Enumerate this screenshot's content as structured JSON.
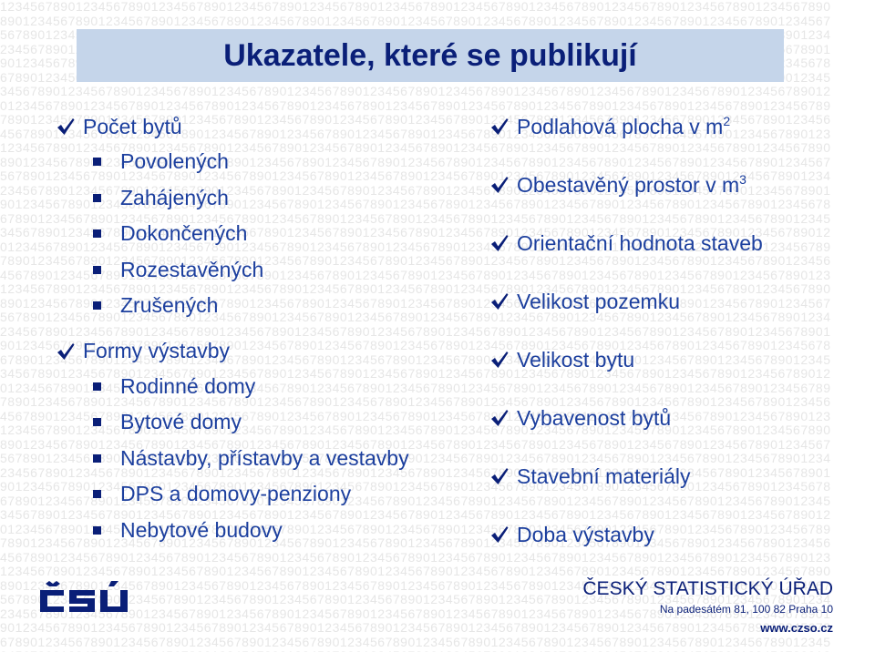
{
  "title": "Ukazatele, které se publikují",
  "background_text": "12345678901234567890123456789012345678901234567890123456789012345678901234567890123456789012345678901234567890",
  "colors": {
    "title": "#0a1f78",
    "title_bar": "#c5d5ea",
    "text": "#1c3f9e",
    "check": "#0a1f78",
    "background_digits": "#e6e6e6"
  },
  "left_column": [
    {
      "label": "Počet bytů",
      "icon": "checkmark-icon",
      "sub": [
        "Povolených",
        "Zahájených",
        "Dokončených",
        "Rozestavěných",
        "Zrušených"
      ]
    },
    {
      "label": "Formy výstavby",
      "icon": "checkmark-icon",
      "sub": [
        "Rodinné domy",
        "Bytové domy",
        "Nástavby, přístavby a vestavby",
        "DPS a domovy-penziony",
        "Nebytové budovy"
      ]
    }
  ],
  "right_column": [
    {
      "label": "Podlahová plocha v m",
      "sup": "2",
      "icon": "checkmark-icon"
    },
    {
      "label": "Obestavěný prostor v m",
      "sup": "3",
      "icon": "checkmark-icon"
    },
    {
      "label": "Orientační hodnota staveb",
      "sup": "",
      "icon": "checkmark-icon"
    },
    {
      "label": "Velikost pozemku",
      "sup": "",
      "icon": "checkmark-icon"
    },
    {
      "label": "Velikost bytu",
      "sup": "",
      "icon": "checkmark-icon"
    },
    {
      "label": "Vybavenost bytů",
      "sup": "",
      "icon": "checkmark-icon"
    },
    {
      "label": "Stavební materiály",
      "sup": "",
      "icon": "checkmark-icon"
    },
    {
      "label": "Doba výstavby",
      "sup": "",
      "icon": "checkmark-icon"
    }
  ],
  "footer": {
    "logo_text": "ČSÚ",
    "agency_name": "ČESKÝ STATISTICKÝ ÚŘAD",
    "address": "Na padesátém 81, 100 82  Praha 10",
    "website": "www.czso.cz"
  }
}
